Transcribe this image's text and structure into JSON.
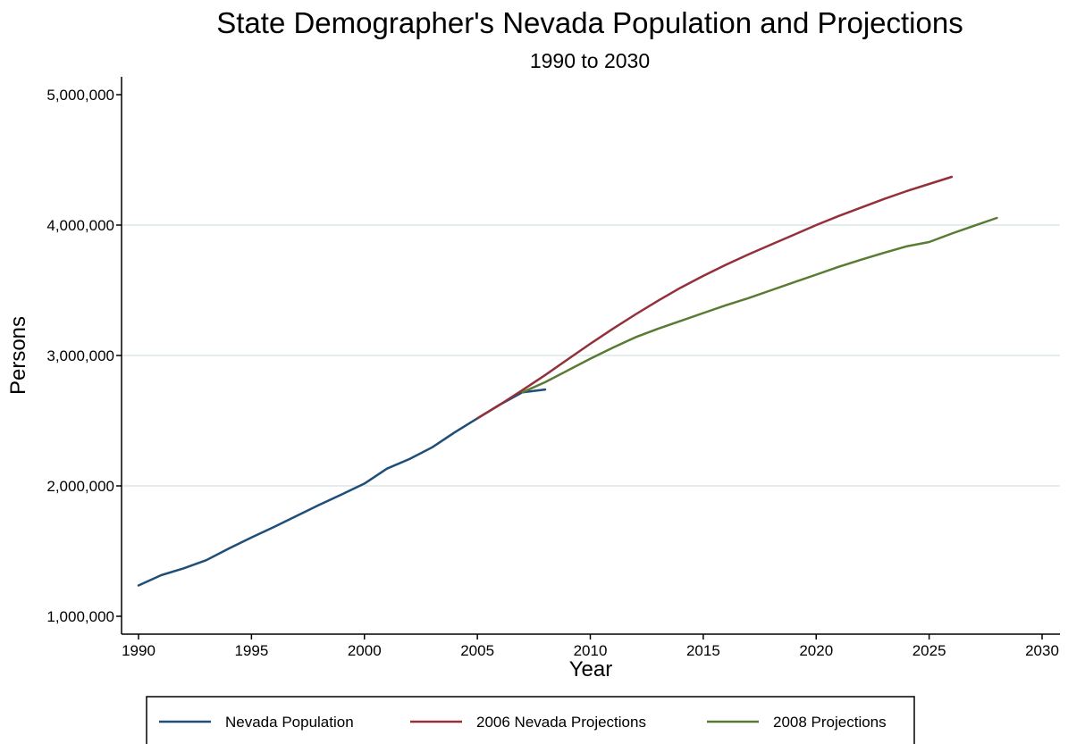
{
  "chart_data": {
    "type": "line",
    "title": "State Demographer's Nevada Population and Projections",
    "subtitle": "1990 to 2030",
    "xlabel": "Year",
    "ylabel": "Persons",
    "xlim": [
      1990,
      2030
    ],
    "ylim": [
      1000000,
      5000000
    ],
    "x_ticks": [
      1990,
      1995,
      2000,
      2005,
      2010,
      2015,
      2020,
      2025,
      2030
    ],
    "x_tick_labels": [
      "1990",
      "1995",
      "2000",
      "2005",
      "2010",
      "2015",
      "2020",
      "2025",
      "2030"
    ],
    "y_ticks": [
      1000000,
      2000000,
      3000000,
      4000000,
      5000000
    ],
    "y_tick_labels": [
      "1,000,000",
      "2,000,000",
      "3,000,000",
      "4,000,000",
      "5,000,000"
    ],
    "grid": "horizontal",
    "legend_position": "bottom",
    "series": [
      {
        "name": "Nevada Population",
        "color": "#1f4e79",
        "x": [
          1990,
          1991,
          1992,
          1993,
          1994,
          1995,
          1996,
          1997,
          1998,
          1999,
          2000,
          2001,
          2002,
          2003,
          2004,
          2005,
          2006,
          2007,
          2008
        ],
        "y": [
          1236000,
          1315000,
          1368000,
          1430000,
          1520000,
          1605000,
          1685000,
          1770000,
          1855000,
          1935000,
          2018000,
          2132000,
          2206000,
          2296000,
          2410000,
          2518000,
          2623000,
          2718000,
          2739000
        ]
      },
      {
        "name": "2006 Nevada Projections",
        "color": "#943039",
        "x": [
          2005,
          2006,
          2007,
          2008,
          2009,
          2010,
          2011,
          2012,
          2013,
          2014,
          2015,
          2016,
          2017,
          2018,
          2019,
          2020,
          2021,
          2022,
          2023,
          2024,
          2025,
          2026
        ],
        "y": [
          2518000,
          2623000,
          2735000,
          2850000,
          2970000,
          3090000,
          3205000,
          3315000,
          3420000,
          3520000,
          3610000,
          3695000,
          3775000,
          3850000,
          3925000,
          4000000,
          4070000,
          4135000,
          4200000,
          4260000,
          4315000,
          4370000
        ]
      },
      {
        "name": "2008 Projections",
        "color": "#597b32",
        "x": [
          2007,
          2008,
          2009,
          2010,
          2011,
          2012,
          2013,
          2014,
          2015,
          2016,
          2017,
          2018,
          2019,
          2020,
          2021,
          2022,
          2023,
          2024,
          2025,
          2026,
          2027,
          2028
        ],
        "y": [
          2718000,
          2795000,
          2885000,
          2975000,
          3060000,
          3140000,
          3205000,
          3265000,
          3325000,
          3385000,
          3440000,
          3500000,
          3560000,
          3620000,
          3680000,
          3735000,
          3787000,
          3837000,
          3870000,
          3935000,
          3995000,
          4055000
        ]
      }
    ]
  }
}
